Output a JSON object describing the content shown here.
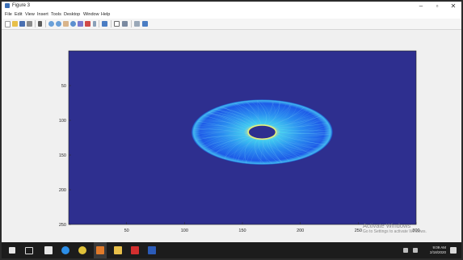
{
  "window": {
    "title": "Figure 3",
    "controls": {
      "minimize": "–",
      "maximize": "▫",
      "close": "✕"
    }
  },
  "menu": {
    "items": [
      "File",
      "Edit",
      "View",
      "Insert",
      "Tools",
      "Desktop",
      "Window",
      "Help"
    ]
  },
  "toolbar": {
    "icons": [
      "new-figure-icon",
      "open-file-icon",
      "save-icon",
      "print-icon",
      "edit-plot-icon",
      "zoom-in-icon",
      "zoom-out-icon",
      "pan-icon",
      "rotate-icon",
      "data-cursor-icon",
      "brush-icon",
      "link-icon",
      "colorbar-icon",
      "legend-icon",
      "hide-tools-icon",
      "show-tools-icon"
    ]
  },
  "chart_data": {
    "type": "heatmap",
    "title": "",
    "xlabel": "",
    "ylabel": "",
    "xlim": [
      0,
      300
    ],
    "ylim": [
      250,
      0
    ],
    "x_ticks": [
      50,
      100,
      150,
      200,
      250,
      300
    ],
    "y_ticks": [
      50,
      100,
      150,
      200,
      250
    ],
    "background_color": "#2e2f8f",
    "ring": {
      "center": [
        167,
        117
      ],
      "outer_radius_x": 61,
      "outer_radius_y": 47,
      "inner_radius_x": 12,
      "inner_radius_y": 10,
      "colors": [
        "#1e5be8",
        "#3fd0f0",
        "#f0f07a"
      ]
    }
  },
  "watermark": {
    "line1": "Activate Windows",
    "line2": "Go to Settings to activate Windows."
  },
  "taskbar": {
    "icons": [
      "start-icon",
      "task-view-icon",
      "store-icon",
      "edge-icon",
      "chrome-icon",
      "matlab-icon",
      "file-explorer-icon",
      "acrobat-icon",
      "word-icon"
    ],
    "clock_time": "9:09 AM",
    "clock_date": "2/18/2020"
  }
}
